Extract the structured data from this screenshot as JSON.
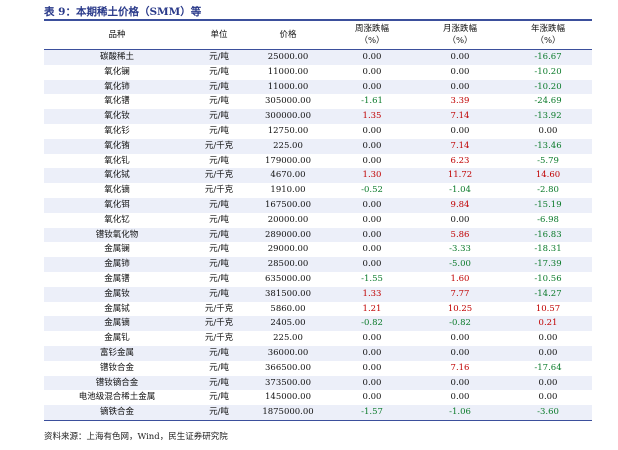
{
  "title": "表 9：本期稀土价格（SMM）等",
  "headers": {
    "name": "品种",
    "unit": "单位",
    "price": "价格",
    "weekly_line1": "周涨跌幅",
    "weekly_line2": "（%）",
    "monthly_line1": "月涨跌幅",
    "monthly_line2": "（%）",
    "yearly_line1": "年涨跌幅",
    "yearly_line2": "（%）"
  },
  "rows": [
    {
      "name": "碳酸稀土",
      "unit": "元/吨",
      "price": "25000.00",
      "weekly": "0.00",
      "monthly": "0.00",
      "yearly": "-16.67"
    },
    {
      "name": "氧化镧",
      "unit": "元/吨",
      "price": "11000.00",
      "weekly": "0.00",
      "monthly": "0.00",
      "yearly": "-10.20"
    },
    {
      "name": "氧化铈",
      "unit": "元/吨",
      "price": "11000.00",
      "weekly": "0.00",
      "monthly": "0.00",
      "yearly": "-10.20"
    },
    {
      "name": "氧化镨",
      "unit": "元/吨",
      "price": "305000.00",
      "weekly": "-1.61",
      "monthly": "3.39",
      "yearly": "-24.69"
    },
    {
      "name": "氧化钕",
      "unit": "元/吨",
      "price": "300000.00",
      "weekly": "1.35",
      "monthly": "7.14",
      "yearly": "-13.92"
    },
    {
      "name": "氧化钐",
      "unit": "元/吨",
      "price": "12750.00",
      "weekly": "0.00",
      "monthly": "0.00",
      "yearly": "0.00"
    },
    {
      "name": "氧化铕",
      "unit": "元/千克",
      "price": "225.00",
      "weekly": "0.00",
      "monthly": "7.14",
      "yearly": "-13.46"
    },
    {
      "name": "氧化钆",
      "unit": "元/吨",
      "price": "179000.00",
      "weekly": "0.00",
      "monthly": "6.23",
      "yearly": "-5.79"
    },
    {
      "name": "氧化铽",
      "unit": "元/千克",
      "price": "4670.00",
      "weekly": "1.30",
      "monthly": "11.72",
      "yearly": "14.60"
    },
    {
      "name": "氧化镝",
      "unit": "元/千克",
      "price": "1910.00",
      "weekly": "-0.52",
      "monthly": "-1.04",
      "yearly": "-2.80"
    },
    {
      "name": "氧化铒",
      "unit": "元/吨",
      "price": "167500.00",
      "weekly": "0.00",
      "monthly": "9.84",
      "yearly": "-15.19"
    },
    {
      "name": "氧化钇",
      "unit": "元/吨",
      "price": "20000.00",
      "weekly": "0.00",
      "monthly": "0.00",
      "yearly": "-6.98"
    },
    {
      "name": "镨钕氧化物",
      "unit": "元/吨",
      "price": "289000.00",
      "weekly": "0.00",
      "monthly": "5.86",
      "yearly": "-16.83"
    },
    {
      "name": "金属镧",
      "unit": "元/吨",
      "price": "29000.00",
      "weekly": "0.00",
      "monthly": "-3.33",
      "yearly": "-18.31"
    },
    {
      "name": "金属铈",
      "unit": "元/吨",
      "price": "28500.00",
      "weekly": "0.00",
      "monthly": "-5.00",
      "yearly": "-17.39"
    },
    {
      "name": "金属镨",
      "unit": "元/吨",
      "price": "635000.00",
      "weekly": "-1.55",
      "monthly": "1.60",
      "yearly": "-10.56"
    },
    {
      "name": "金属钕",
      "unit": "元/吨",
      "price": "381500.00",
      "weekly": "1.33",
      "monthly": "7.77",
      "yearly": "-14.27"
    },
    {
      "name": "金属铽",
      "unit": "元/千克",
      "price": "5860.00",
      "weekly": "1.21",
      "monthly": "10.25",
      "yearly": "10.57"
    },
    {
      "name": "金属镝",
      "unit": "元/千克",
      "price": "2405.00",
      "weekly": "-0.82",
      "monthly": "-0.82",
      "yearly": "0.21"
    },
    {
      "name": "金属钆",
      "unit": "元/千克",
      "price": "225.00",
      "weekly": "0.00",
      "monthly": "0.00",
      "yearly": "0.00"
    },
    {
      "name": "富钐金属",
      "unit": "元/吨",
      "price": "36000.00",
      "weekly": "0.00",
      "monthly": "0.00",
      "yearly": "0.00"
    },
    {
      "name": "镨钕合金",
      "unit": "元/吨",
      "price": "366500.00",
      "weekly": "0.00",
      "monthly": "7.16",
      "yearly": "-17.64"
    },
    {
      "name": "镨钕镝合金",
      "unit": "元/吨",
      "price": "373500.00",
      "weekly": "0.00",
      "monthly": "0.00",
      "yearly": "0.00"
    },
    {
      "name": "电池级混合稀土金属",
      "unit": "元/吨",
      "price": "145000.00",
      "weekly": "0.00",
      "monthly": "0.00",
      "yearly": "0.00"
    },
    {
      "name": "镝铁合金",
      "unit": "元/吨",
      "price": "1875000.00",
      "weekly": "-1.57",
      "monthly": "-1.06",
      "yearly": "-3.60"
    }
  ],
  "source": "资料来源：上海有色网，Wind，民生证券研究院",
  "colors": {
    "positive": "#c00000",
    "negative": "#0a7a2a",
    "neutral": "#111111",
    "stripe": "#eceff9",
    "rule": "#3b4f9c"
  }
}
